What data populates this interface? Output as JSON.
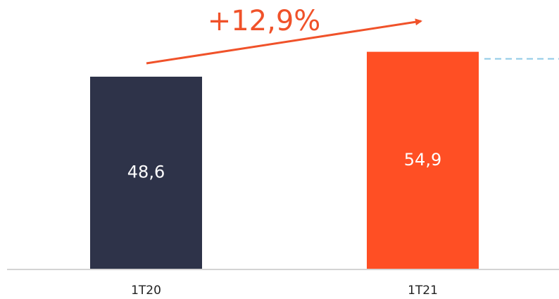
{
  "chart_data": {
    "type": "bar",
    "categories": [
      "1T20",
      "1T21"
    ],
    "values": [
      48.6,
      54.9
    ],
    "value_labels": [
      "48,6",
      "54,9"
    ],
    "colors": [
      "#2e3349",
      "#ff4f24"
    ],
    "annotation": "+12,9%"
  }
}
